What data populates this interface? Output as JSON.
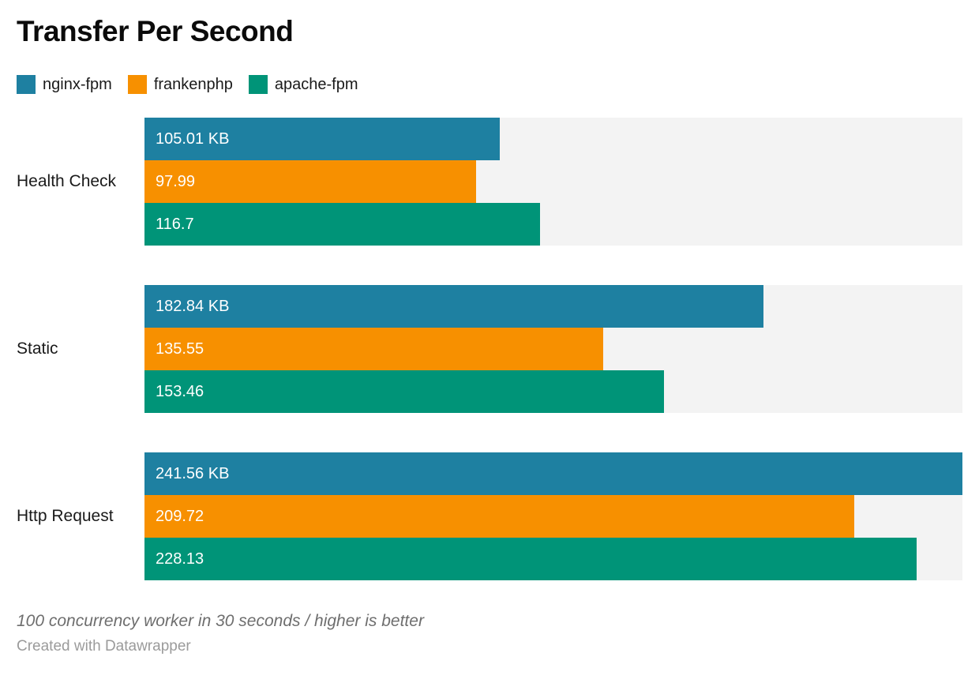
{
  "title": "Transfer Per Second",
  "legend": {
    "items": [
      {
        "label": "nginx-fpm",
        "color": "#1e80a1"
      },
      {
        "label": "frankenphp",
        "color": "#f79000"
      },
      {
        "label": "apache-fpm",
        "color": "#009478"
      }
    ]
  },
  "chart_data": {
    "type": "bar",
    "orientation": "horizontal",
    "title": "Transfer Per Second",
    "categories": [
      "Health Check",
      "Static",
      "Http Request"
    ],
    "series": [
      {
        "name": "nginx-fpm",
        "color": "#1e80a1",
        "values": [
          105.01,
          182.84,
          241.56
        ],
        "labels": [
          "105.01 KB",
          "182.84 KB",
          "241.56 KB"
        ]
      },
      {
        "name": "frankenphp",
        "color": "#f79000",
        "values": [
          97.99,
          135.55,
          209.72
        ],
        "labels": [
          "97.99",
          "135.55",
          "209.72"
        ]
      },
      {
        "name": "apache-fpm",
        "color": "#009478",
        "values": [
          116.7,
          153.46,
          228.13
        ],
        "labels": [
          "116.7",
          "153.46",
          "228.13"
        ]
      }
    ],
    "unit": "KB",
    "xlim": [
      0,
      241.56
    ],
    "grid": false,
    "track_color": "#f3f3f3",
    "legend_position": "top",
    "value_labels_inside": true
  },
  "footer": {
    "note": "100 concurrency worker in 30 seconds / higher is better",
    "attribution": "Created with Datawrapper"
  }
}
